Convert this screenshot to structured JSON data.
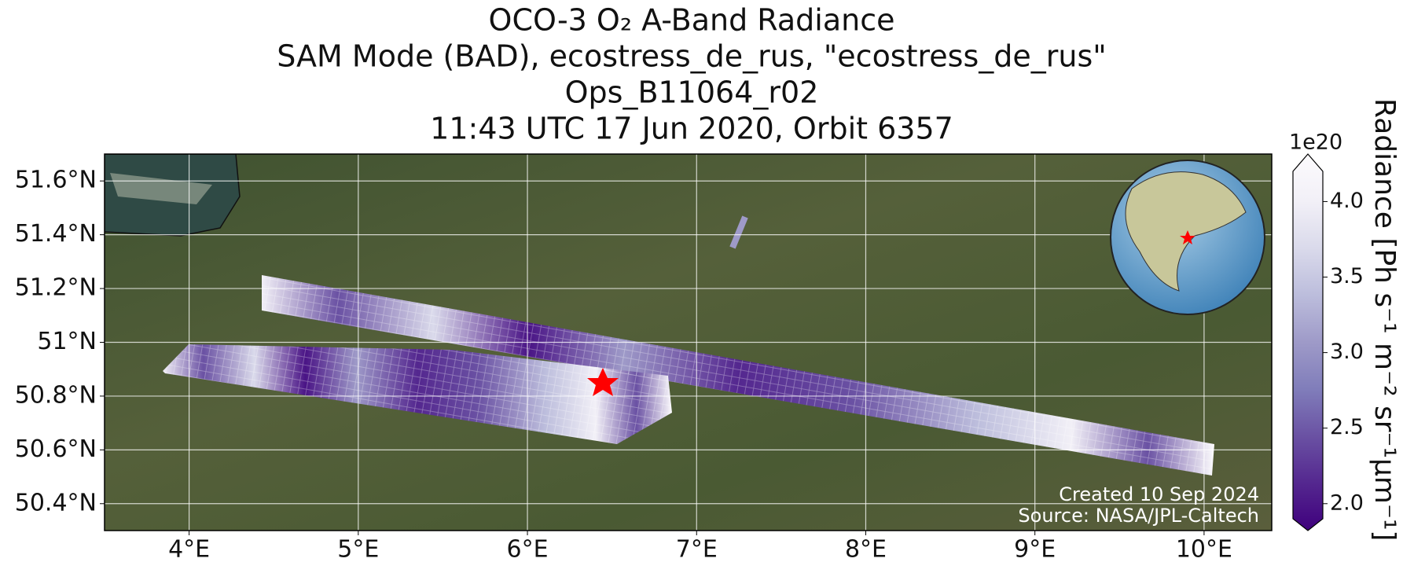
{
  "title_lines": [
    "OCO-3 O₂ A-Band Radiance",
    "SAM Mode (BAD), ecostress_de_rus, \"ecostress_de_rus\"",
    "Ops_B11064_r02",
    "11:43 UTC 17 Jun 2020, Orbit 6357"
  ],
  "map": {
    "xlim": [
      3.5,
      10.4
    ],
    "ylim": [
      50.3,
      51.7
    ],
    "xticks": [
      {
        "value": 4,
        "label": "4°E"
      },
      {
        "value": 5,
        "label": "5°E"
      },
      {
        "value": 6,
        "label": "6°E"
      },
      {
        "value": 7,
        "label": "7°E"
      },
      {
        "value": 8,
        "label": "8°E"
      },
      {
        "value": 9,
        "label": "9°E"
      },
      {
        "value": 10,
        "label": "10°E"
      }
    ],
    "yticks": [
      {
        "value": 50.4,
        "label": "50.4°N"
      },
      {
        "value": 50.6,
        "label": "50.6°N"
      },
      {
        "value": 50.8,
        "label": "50.8°N"
      },
      {
        "value": 51,
        "label": "51°N"
      },
      {
        "value": 51.2,
        "label": "51.2°N"
      },
      {
        "value": 51.4,
        "label": "51.4°N"
      },
      {
        "value": 51.6,
        "label": "51.6°N"
      }
    ],
    "grid": true
  },
  "colorbar": {
    "label": "Radiance [Ph s⁻¹ m⁻² sr⁻¹μm⁻¹]",
    "exponent": "1e20",
    "clim": [
      1.9,
      4.2
    ],
    "ticks": [
      {
        "value": 2.0,
        "label": "2.0"
      },
      {
        "value": 2.5,
        "label": "2.5"
      },
      {
        "value": 3.0,
        "label": "3.0"
      },
      {
        "value": 3.5,
        "label": "3.5"
      },
      {
        "value": 4.0,
        "label": "4.0"
      }
    ],
    "colors": [
      "#3f007d",
      "#54278f",
      "#6a51a3",
      "#807dba",
      "#9e9ac8",
      "#bcbddc",
      "#dadaeb",
      "#f2f0f7",
      "#fcfbfd"
    ]
  },
  "credits": [
    "Created 10 Sep 2024",
    "Source: NASA/JPL-Caltech"
  ]
}
